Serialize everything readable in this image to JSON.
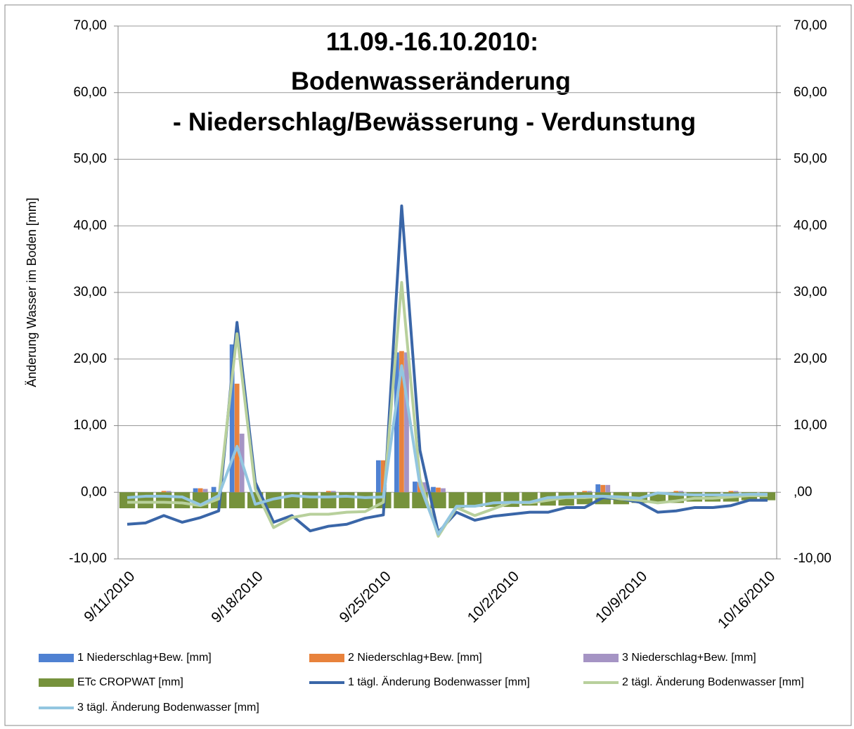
{
  "chart_data": {
    "type": "combo",
    "title": [
      "11.09.-16.10.2010:",
      "Bodenwasseränderung",
      "- Niederschlag/Bewässerung - Verdunstung"
    ],
    "y_label": "Änderung Wasser im Boden [mm]",
    "categories": [
      "9/11/2010",
      null,
      null,
      null,
      null,
      null,
      null,
      "9/18/2010",
      null,
      null,
      null,
      null,
      null,
      null,
      "9/25/2010",
      null,
      null,
      null,
      null,
      null,
      null,
      "10/2/2010",
      null,
      null,
      null,
      null,
      null,
      null,
      "10/9/2010",
      null,
      null,
      null,
      null,
      null,
      null,
      "10/16/2010"
    ],
    "ylim": [
      -10,
      70
    ],
    "yticks": [
      {
        "value": -10,
        "label": "-10,00"
      },
      {
        "value": 0,
        "label": "0,00"
      },
      {
        "value": 10,
        "label": "10,00"
      },
      {
        "value": 20,
        "label": "20,00"
      },
      {
        "value": 30,
        "label": "30,00"
      },
      {
        "value": 40,
        "label": "40,00"
      },
      {
        "value": 50,
        "label": "50,00"
      },
      {
        "value": 60,
        "label": "60,00"
      },
      {
        "value": 70,
        "label": "70,00"
      }
    ],
    "y2lim": [
      -10,
      70
    ],
    "y2ticks": [
      {
        "value": -10,
        "label": "-10,00"
      },
      {
        "value": 0,
        "label": ",00"
      },
      {
        "value": 10,
        "label": "10,00"
      },
      {
        "value": 20,
        "label": "20,00"
      },
      {
        "value": 30,
        "label": "30,00"
      },
      {
        "value": 40,
        "label": "40,00"
      },
      {
        "value": 50,
        "label": "50,00"
      },
      {
        "value": 60,
        "label": "60,00"
      },
      {
        "value": 70,
        "label": "70,00"
      }
    ],
    "grid": true,
    "series": [
      {
        "name": "1 Niederschlag+Bew. [mm]",
        "type": "bar",
        "color": "#4f81d2",
        "values": [
          0,
          0,
          0,
          0,
          0.6,
          0.8,
          22.2,
          0,
          0,
          0,
          0,
          0,
          0,
          0,
          4.8,
          21.0,
          1.6,
          0.8,
          0,
          0,
          0,
          0,
          0,
          0,
          0,
          0,
          1.2,
          0,
          0,
          0,
          0,
          0,
          0,
          0,
          0,
          0
        ]
      },
      {
        "name": "2 Niederschlag+Bew. [mm]",
        "type": "bar",
        "color": "#e8823c",
        "values": [
          0,
          0,
          0.2,
          0,
          0.6,
          0,
          16.3,
          0,
          0,
          0,
          0,
          0.2,
          0,
          0,
          4.8,
          21.2,
          1.5,
          0.7,
          0,
          0,
          0,
          0,
          0,
          0,
          0,
          0.2,
          1.1,
          0,
          0,
          0,
          0.2,
          0,
          0,
          0.2,
          0,
          0
        ]
      },
      {
        "name": "3 Niederschlag+Bew. [mm]",
        "type": "bar",
        "color": "#a594c4",
        "values": [
          0,
          0,
          0.2,
          0,
          0.5,
          0,
          8.8,
          0,
          0,
          0,
          0,
          0.2,
          0,
          0,
          0,
          21.0,
          1.5,
          0.6,
          0,
          0,
          0,
          0,
          0,
          0,
          0,
          0.2,
          1.1,
          0,
          0,
          0,
          0.2,
          0,
          0,
          0.2,
          0,
          0
        ]
      },
      {
        "name": "ETc CROPWAT [mm]",
        "type": "bar",
        "color": "#76923c",
        "values": [
          -2.4,
          -2.4,
          -2.4,
          -2.4,
          -2.4,
          -2.4,
          -2.4,
          -2.4,
          -2.4,
          -2.4,
          -2.4,
          -2.4,
          -2.4,
          -2.4,
          -2.4,
          -2.4,
          -2.4,
          -2.4,
          -2.4,
          -2.2,
          -2.2,
          -2.2,
          -2.0,
          -2.0,
          -2.0,
          -1.8,
          -1.8,
          -1.8,
          -1.6,
          -1.6,
          -1.6,
          -1.4,
          -1.4,
          -1.4,
          -1.2,
          -1.2
        ]
      },
      {
        "name": "1 tägl. Änderung Bodenwasser [mm]",
        "type": "line",
        "color": "#3a66a8",
        "values": [
          -4.8,
          -4.6,
          -3.5,
          -4.5,
          -3.8,
          -2.8,
          25.5,
          1.5,
          -4.5,
          -3.5,
          -5.8,
          -5.1,
          -4.8,
          -3.9,
          -3.4,
          43.0,
          6.3,
          -6.0,
          -3.0,
          -4.2,
          -3.6,
          -3.3,
          -3.0,
          -3.0,
          -2.3,
          -2.3,
          -0.8,
          -1.0,
          -1.5,
          -3.0,
          -2.8,
          -2.3,
          -2.3,
          -2.0,
          -1.2,
          -1.2
        ]
      },
      {
        "name": "2 tägl. Änderung Bodenwasser [mm]",
        "type": "line",
        "color": "#b8d09c",
        "values": [
          -1.5,
          -1.5,
          -1.5,
          -1.6,
          -2.0,
          -1.0,
          23.8,
          0.5,
          -5.3,
          -3.8,
          -3.3,
          -3.3,
          -3.0,
          -2.9,
          -1.5,
          31.5,
          2.0,
          -6.6,
          -2.3,
          -3.5,
          -2.5,
          -1.5,
          -1.6,
          -1.2,
          -0.8,
          -0.8,
          -0.6,
          -1.0,
          -1.2,
          -1.6,
          -1.3,
          -0.9,
          -0.9,
          -0.7,
          -0.5,
          -0.5
        ]
      },
      {
        "name": "3 tägl. Änderung Bodenwasser [mm]",
        "type": "line",
        "color": "#93c6e0",
        "values": [
          -0.8,
          -0.6,
          -0.6,
          -0.7,
          -1.9,
          -0.5,
          6.9,
          -1.8,
          -1.0,
          -0.5,
          -0.7,
          -0.7,
          -0.6,
          -0.8,
          -0.7,
          19.0,
          1.0,
          -6.3,
          -2.1,
          -2.1,
          -1.6,
          -1.5,
          -1.5,
          -0.8,
          -0.7,
          -0.6,
          -0.6,
          -0.7,
          -0.9,
          -0.1,
          -0.3,
          -0.4,
          -0.4,
          -0.4,
          -0.3,
          -0.3
        ]
      }
    ]
  }
}
